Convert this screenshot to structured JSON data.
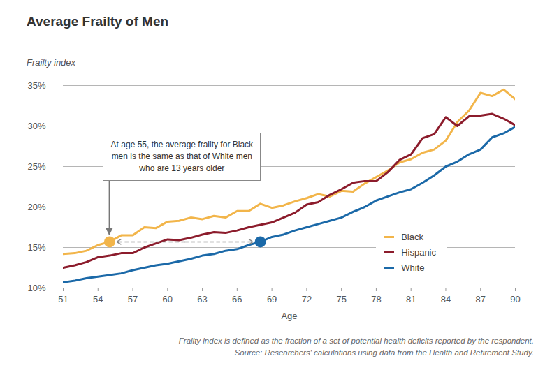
{
  "chart_data": {
    "type": "line",
    "title": "Average Frailty of Men",
    "y_label": "Frailty index",
    "x_label": "Age",
    "x": [
      51,
      52,
      53,
      54,
      55,
      56,
      57,
      58,
      59,
      60,
      61,
      62,
      63,
      64,
      65,
      66,
      67,
      68,
      69,
      70,
      71,
      72,
      73,
      74,
      75,
      76,
      77,
      78,
      79,
      80,
      81,
      82,
      83,
      84,
      85,
      86,
      87,
      88,
      89,
      90
    ],
    "series": [
      {
        "name": "Black",
        "color": "#f2b54a",
        "values": [
          14.2,
          14.3,
          14.6,
          15.3,
          15.7,
          16.5,
          16.5,
          17.5,
          17.4,
          18.2,
          18.3,
          18.7,
          18.5,
          18.9,
          18.7,
          19.5,
          19.5,
          20.4,
          19.9,
          20.2,
          20.7,
          21.1,
          21.6,
          21.3,
          22.0,
          21.9,
          22.9,
          23.7,
          24.5,
          25.5,
          25.9,
          26.7,
          27.1,
          28.2,
          30.5,
          31.9,
          34.1,
          33.7,
          34.5,
          33.3
        ]
      },
      {
        "name": "Hispanic",
        "color": "#8c1c2c",
        "values": [
          12.5,
          12.8,
          13.2,
          13.8,
          14.0,
          14.3,
          14.3,
          15.0,
          15.5,
          16.0,
          15.9,
          16.2,
          16.6,
          16.9,
          16.8,
          17.1,
          17.5,
          17.8,
          18.1,
          18.7,
          19.3,
          20.3,
          20.6,
          21.5,
          22.2,
          23.0,
          23.2,
          23.2,
          24.3,
          25.8,
          26.5,
          28.5,
          29.0,
          31.1,
          30.0,
          31.2,
          31.3,
          31.5,
          30.9,
          30.1
        ]
      },
      {
        "name": "White",
        "color": "#1b69a8",
        "values": [
          10.7,
          10.9,
          11.2,
          11.4,
          11.6,
          11.8,
          12.2,
          12.5,
          12.8,
          13.0,
          13.3,
          13.6,
          14.0,
          14.2,
          14.6,
          14.8,
          15.3,
          15.7,
          16.3,
          16.6,
          17.1,
          17.5,
          17.9,
          18.3,
          18.7,
          19.4,
          20.0,
          20.8,
          21.3,
          21.8,
          22.2,
          23.0,
          23.9,
          25.0,
          25.6,
          26.5,
          27.1,
          28.6,
          29.1,
          29.9
        ]
      }
    ],
    "xlim": [
      51,
      90
    ],
    "xticks": [
      51,
      54,
      57,
      60,
      63,
      66,
      69,
      72,
      75,
      78,
      81,
      84,
      87,
      90
    ],
    "ylim": [
      10,
      35
    ],
    "yticks": [
      {
        "value": 10,
        "label": "10%"
      },
      {
        "value": 15,
        "label": "15%"
      },
      {
        "value": 20,
        "label": "20%"
      },
      {
        "value": 25,
        "label": "25%"
      },
      {
        "value": 30,
        "label": "30%"
      },
      {
        "value": 35,
        "label": "35%"
      }
    ],
    "grid": "y",
    "legend": "bottom-right",
    "annotation": {
      "text": "At age 55, the average frailty for Black men is the same as that of White men who are 13 years older",
      "from": {
        "series": "Black",
        "x": 55,
        "y": 15.7
      },
      "to": {
        "series": "White",
        "x": 68,
        "y": 15.7
      }
    },
    "notes": [
      "Frailty index is defined as the fraction of a set of potential health deficits reported by the respondent.",
      "Source: Researchers' calculations using data from the Health and Retirement Study."
    ]
  }
}
